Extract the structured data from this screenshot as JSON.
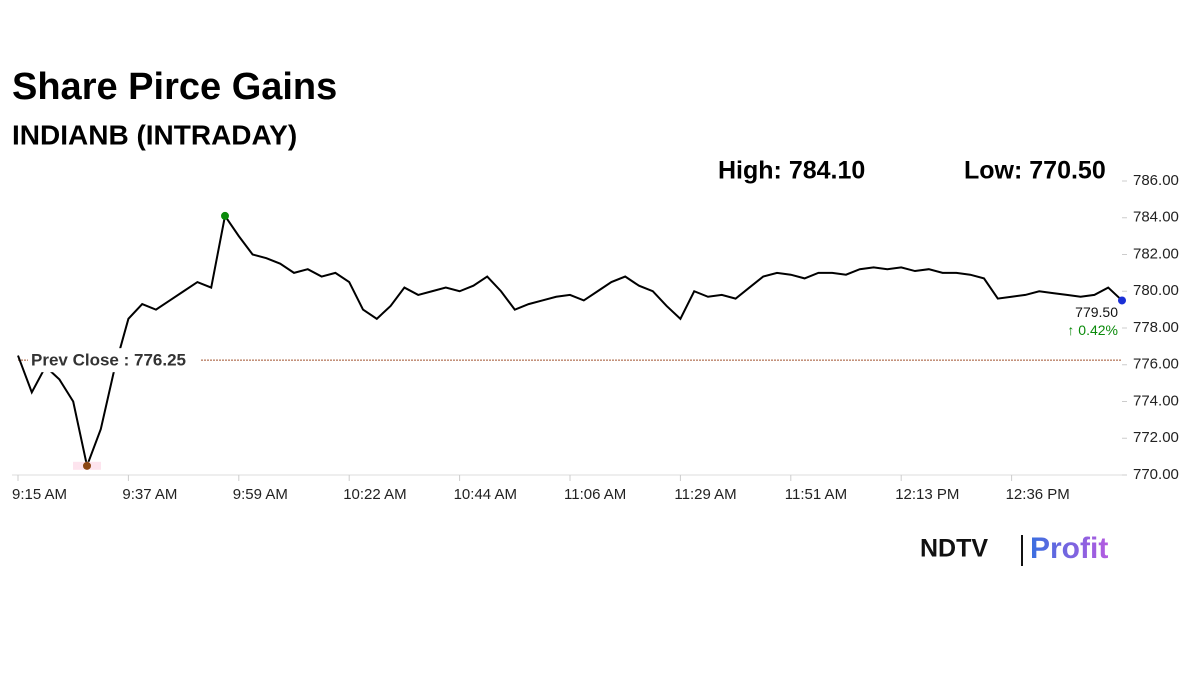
{
  "chart_data": {
    "type": "line",
    "title": "Share Pirce Gains",
    "subtitle": "INDIANB (INTRADAY)",
    "high_label": "High: 784.10",
    "low_label": "Low: 770.50",
    "reference_line": {
      "label": "Prev Close : 776.25",
      "value": 776.25
    },
    "last_label": "779.50",
    "change_label": "↑ 0.42%",
    "categories": [
      "9:15 AM",
      null,
      null,
      null,
      null,
      null,
      null,
      null,
      "9:37 AM",
      null,
      null,
      null,
      null,
      null,
      null,
      null,
      "9:59 AM",
      null,
      null,
      null,
      null,
      null,
      null,
      null,
      "10:22 AM",
      null,
      null,
      null,
      null,
      null,
      null,
      null,
      "10:44 AM",
      null,
      null,
      null,
      null,
      null,
      null,
      null,
      "11:06 AM",
      null,
      null,
      null,
      null,
      null,
      null,
      null,
      "11:29 AM",
      null,
      null,
      null,
      null,
      null,
      null,
      null,
      "11:51 AM",
      null,
      null,
      null,
      null,
      null,
      null,
      null,
      "12:13 PM",
      null,
      null,
      null,
      null,
      null,
      null,
      null,
      "12:36 PM",
      null,
      null,
      null,
      null,
      null,
      null,
      null,
      null
    ],
    "series": [
      {
        "color": "#000000",
        "values": [
          776.5,
          774.5,
          775.9,
          775.2,
          774.0,
          770.5,
          772.5,
          775.8,
          778.5,
          779.3,
          779.0,
          779.5,
          780.0,
          780.5,
          780.2,
          784.1,
          783.0,
          782.0,
          781.8,
          781.5,
          781.0,
          781.2,
          780.8,
          781.0,
          780.5,
          779.0,
          778.5,
          779.2,
          780.2,
          779.8,
          780.0,
          780.2,
          780.0,
          780.3,
          780.8,
          780.0,
          779.0,
          779.3,
          779.5,
          779.7,
          779.8,
          779.5,
          780.0,
          780.5,
          780.8,
          780.3,
          780.0,
          779.2,
          778.5,
          780.0,
          779.7,
          779.8,
          779.6,
          780.2,
          780.8,
          781.0,
          780.9,
          780.7,
          781.0,
          781.0,
          780.9,
          781.2,
          781.3,
          781.2,
          781.3,
          781.1,
          781.2,
          781.0,
          781.0,
          780.9,
          780.7,
          779.6,
          779.7,
          779.8,
          780.0,
          779.9,
          779.8,
          779.7,
          779.8,
          780.2,
          779.5
        ]
      }
    ],
    "ylim": [
      770,
      786
    ],
    "yticks": [
      {
        "value": 770,
        "label": "770.00"
      },
      {
        "value": 772,
        "label": "772.00"
      },
      {
        "value": 774,
        "label": "774.00"
      },
      {
        "value": 776,
        "label": "776.00"
      },
      {
        "value": 778,
        "label": "778.00"
      },
      {
        "value": 780,
        "label": "780.00"
      },
      {
        "value": 782,
        "label": "782.00"
      },
      {
        "value": 784,
        "label": "784.00"
      },
      {
        "value": 786,
        "label": "786.00"
      }
    ],
    "grid": false
  },
  "logo": {
    "brand": "NDTV",
    "product": "Profit"
  }
}
